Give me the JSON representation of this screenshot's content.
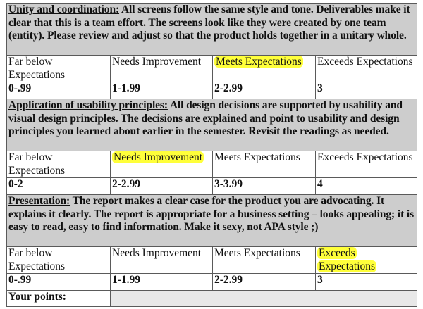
{
  "highlight_color": "#ffff3a",
  "header_bg": "#cdcdcd",
  "sections": [
    {
      "criterion": "Unity and coordination:",
      "description": " All screens follow the same style and tone. Deliverables make it clear that this is a team effort. The screens look like they were created by one team (entity). Please review and adjust so that the product holds together in a unitary whole.",
      "levels": [
        "Far below Expectations",
        "Needs Improvement",
        "Meets Expectations",
        "Exceeds Expectations"
      ],
      "scores": [
        "0-.99",
        "1-1.99",
        "2-2.99",
        "3"
      ],
      "selected_level": 2
    },
    {
      "criterion": "Application of usability principles:",
      "description": " All design decisions are supported by usability and visual design principles.  The decisions are explained and point to usability and design principles you learned about earlier in the semester. Revisit the readings as needed.",
      "levels": [
        "Far below Expectations",
        "Needs Improvement",
        "Meets Expectations",
        "Exceeds Expectations"
      ],
      "scores": [
        "0-2",
        "2-2.99",
        "3-3.99",
        "4"
      ],
      "selected_level": 1
    },
    {
      "criterion": "Presentation:",
      "description": " The report makes a clear case for the product you are advocating. It explains it clearly. The report is appropriate for a business setting – looks appealing; it is easy to read, easy to find information. Make it sexy, not APA style ;)",
      "levels": [
        "Far below Expectations",
        "Needs Improvement",
        "Meets Expectations",
        "Exceeds Expectations"
      ],
      "scores": [
        "0-.99",
        "1-1.99",
        "2-2.99",
        "3"
      ],
      "selected_level": 3
    }
  ],
  "points_label": "Your points:",
  "points_value": ""
}
